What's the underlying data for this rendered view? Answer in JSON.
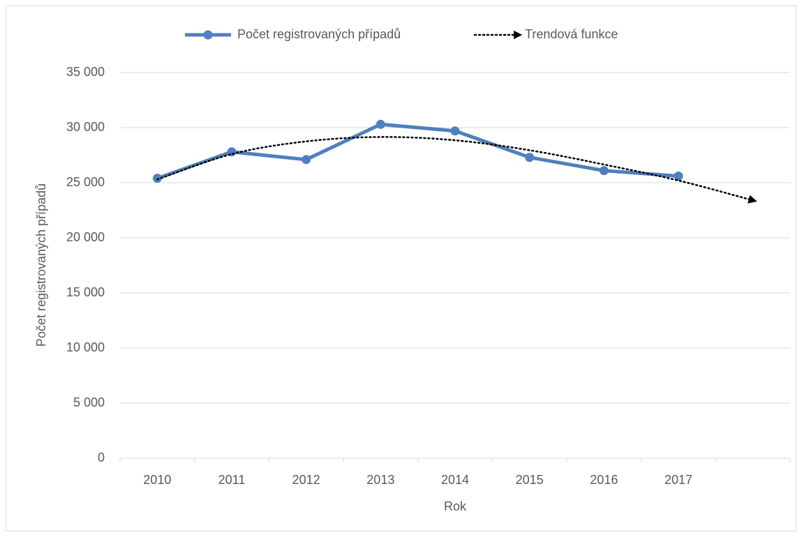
{
  "chart_data": {
    "type": "line",
    "x_label": "Rok",
    "y_label": "Počet registrovaných případů",
    "categories": [
      "2010",
      "2011",
      "2012",
      "2013",
      "2014",
      "2015",
      "2016",
      "2017",
      null
    ],
    "series": [
      {
        "name": "Počet registrovaných případů",
        "color": "#4f7fbf",
        "line_style": "solid",
        "marker": "circle",
        "values": [
          25400,
          27800,
          27100,
          30300,
          29700,
          27300,
          26100,
          25600,
          null
        ]
      },
      {
        "name": "Trendová funkce",
        "color": "#000000",
        "line_style": "dotted",
        "marker": "arrow",
        "values": [
          25300,
          27600,
          28750,
          29150,
          28850,
          27950,
          26650,
          25200,
          23400
        ]
      }
    ],
    "ylim": [
      0,
      35000
    ],
    "yticks": [
      {
        "value": 0,
        "label": "0"
      },
      {
        "value": 5000,
        "label": "5 000"
      },
      {
        "value": 10000,
        "label": "10 000"
      },
      {
        "value": 15000,
        "label": "15 000"
      },
      {
        "value": 20000,
        "label": "20 000"
      },
      {
        "value": 25000,
        "label": "25 000"
      },
      {
        "value": 30000,
        "label": "30 000"
      },
      {
        "value": 35000,
        "label": "35 000"
      }
    ],
    "grid": true,
    "legend": "top"
  }
}
